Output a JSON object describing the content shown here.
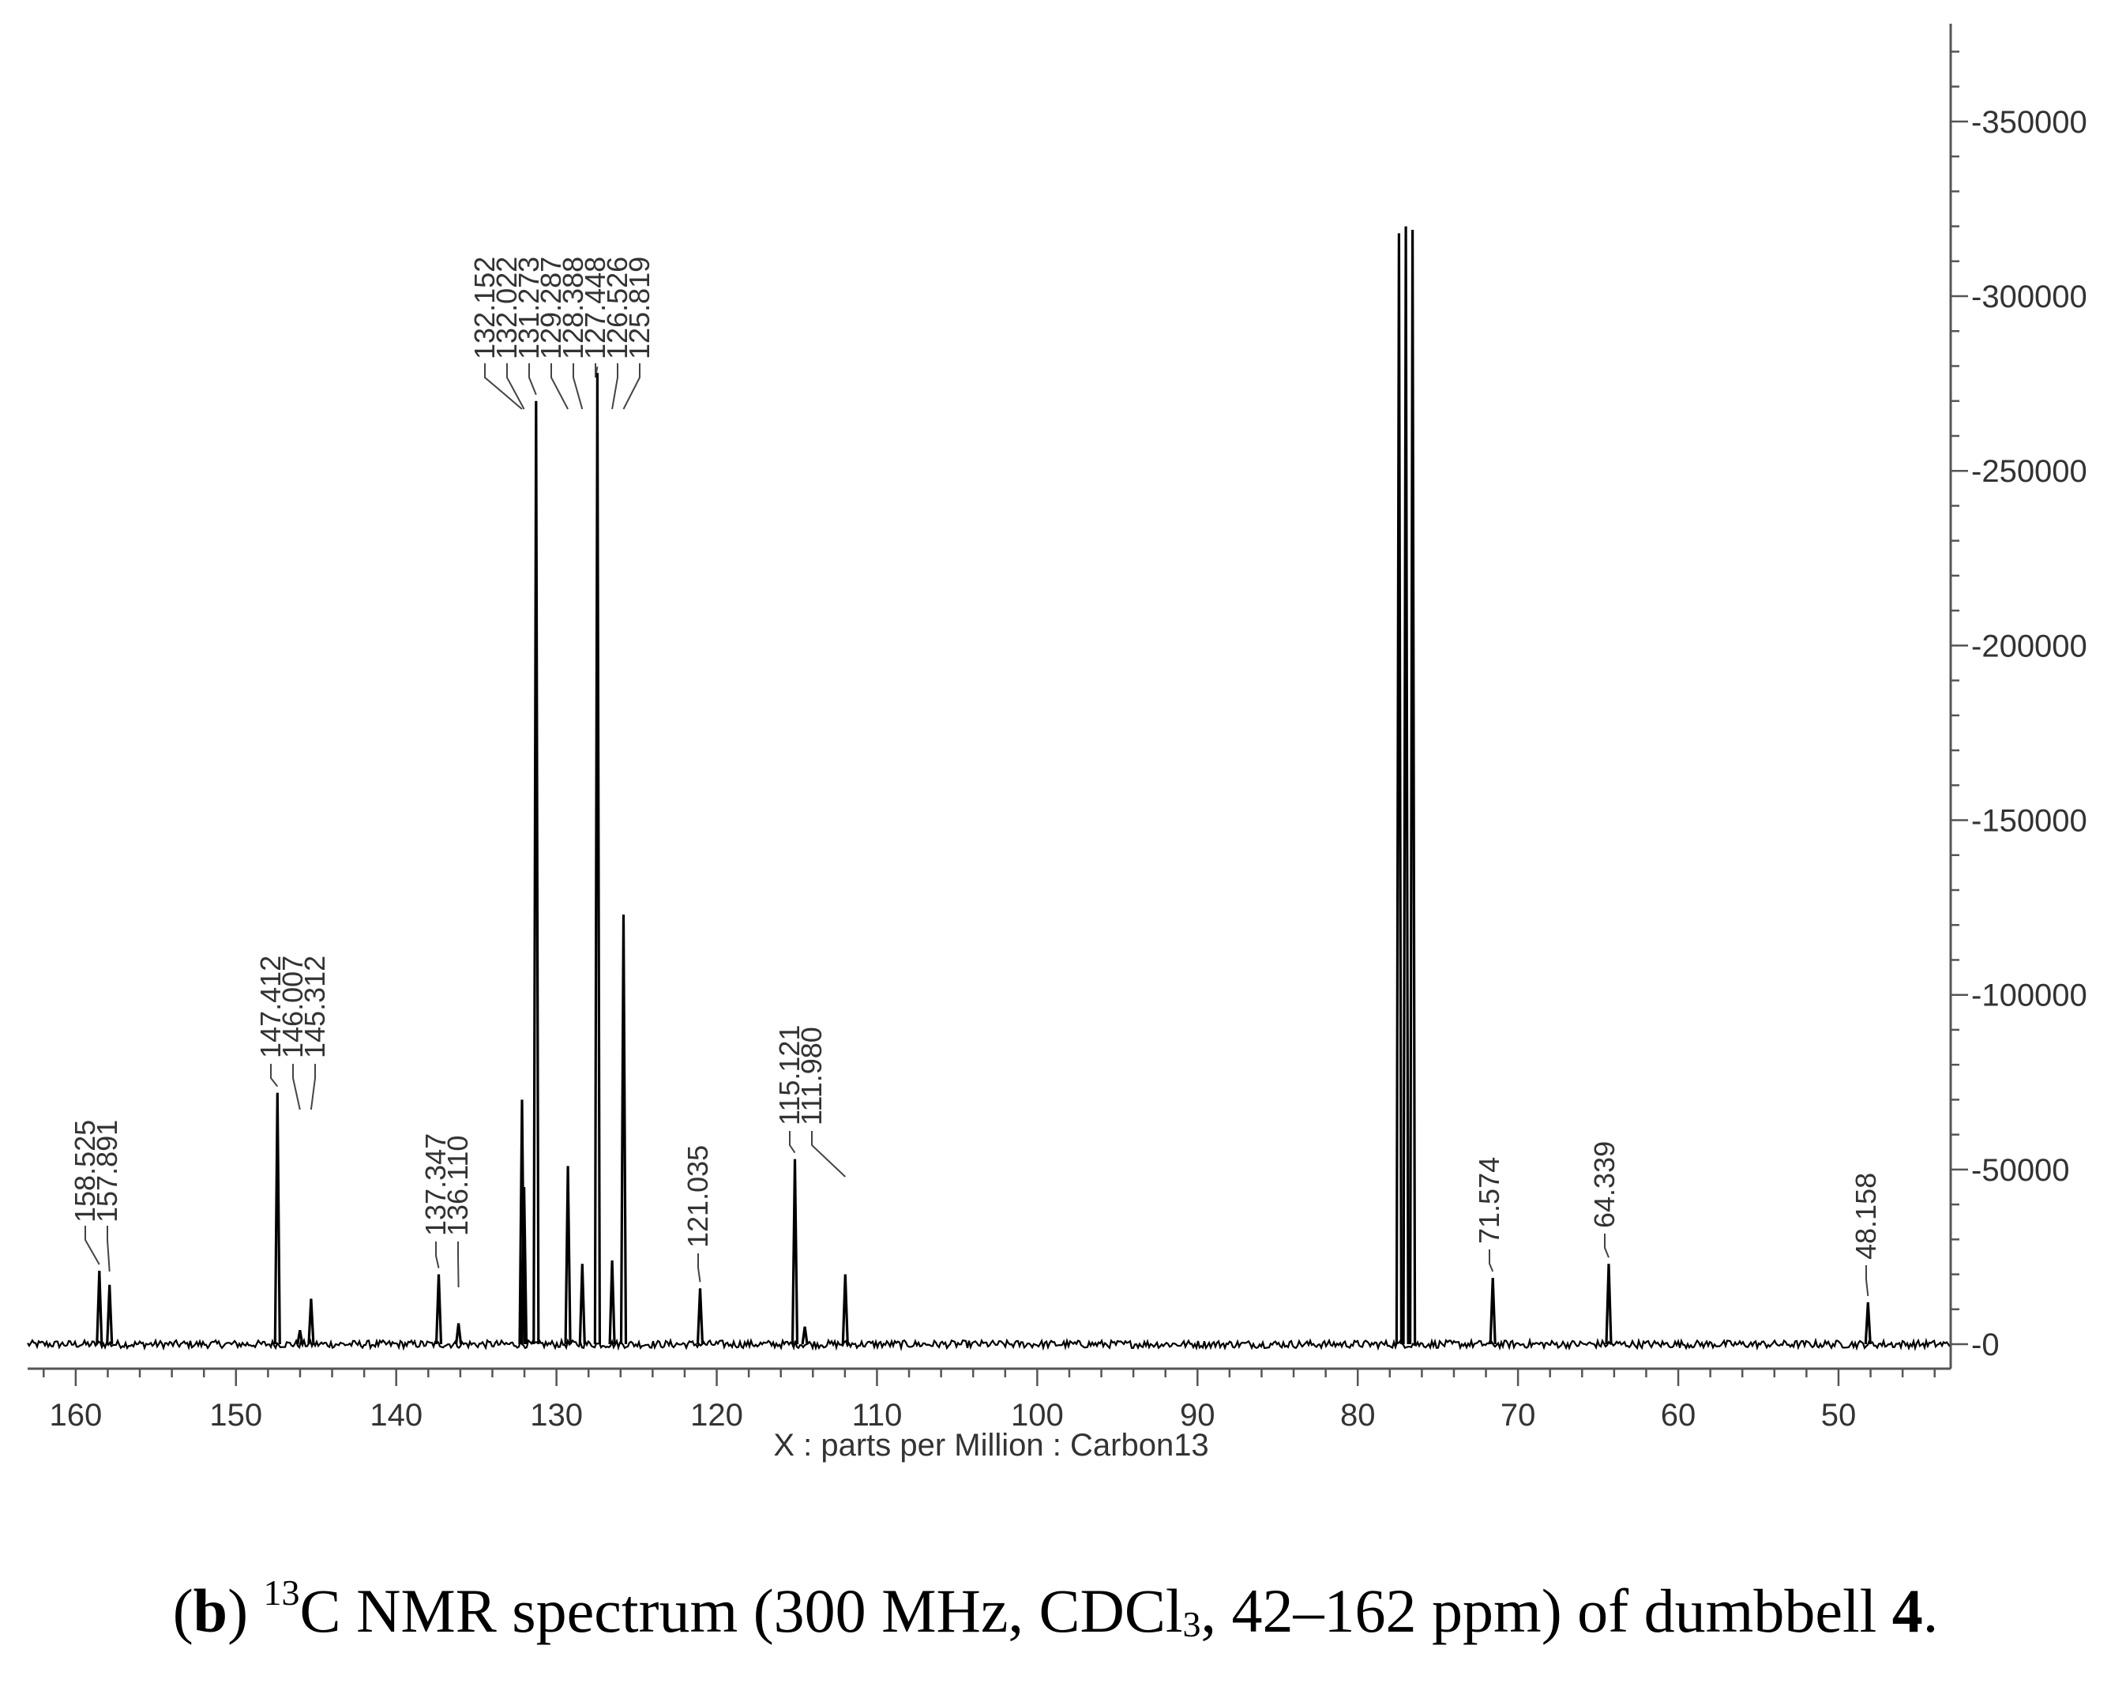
{
  "chart_data": {
    "type": "line",
    "xlabel": "X : parts per Million : Carbon13",
    "x_ticks": [
      160,
      150,
      140,
      130,
      120,
      110,
      100,
      90,
      80,
      70,
      60,
      50
    ],
    "y_ticks": [
      0,
      50000,
      100000,
      150000,
      200000,
      250000,
      300000,
      350000
    ],
    "xlim": [
      163,
      43
    ],
    "ylim": [
      -7000,
      378000
    ],
    "x_direction": "reversed",
    "y_axis_position": "right",
    "grid": false,
    "line_color": "#000000",
    "peaks": [
      {
        "ppm": 158.525,
        "intensity": 21000
      },
      {
        "ppm": 157.891,
        "intensity": 17000
      },
      {
        "ppm": 147.412,
        "intensity": 72000
      },
      {
        "ppm": 146.007,
        "intensity": 4000
      },
      {
        "ppm": 145.312,
        "intensity": 13000
      },
      {
        "ppm": 137.347,
        "intensity": 20000
      },
      {
        "ppm": 136.11,
        "intensity": 6000
      },
      {
        "ppm": 132.152,
        "intensity": 70000
      },
      {
        "ppm": 132.022,
        "intensity": 45000
      },
      {
        "ppm": 131.273,
        "intensity": 270000
      },
      {
        "ppm": 129.287,
        "intensity": 51000
      },
      {
        "ppm": 128.388,
        "intensity": 23000
      },
      {
        "ppm": 127.448,
        "intensity": 278000
      },
      {
        "ppm": 126.526,
        "intensity": 24000
      },
      {
        "ppm": 125.819,
        "intensity": 123000
      },
      {
        "ppm": 121.035,
        "intensity": 16000
      },
      {
        "ppm": 115.121,
        "intensity": 53000
      },
      {
        "ppm": 114.5,
        "intensity": 5000
      },
      {
        "ppm": 111.98,
        "intensity": 20000
      },
      {
        "ppm": 77.43,
        "intensity": 318000
      },
      {
        "ppm": 77.0,
        "intensity": 320000
      },
      {
        "ppm": 76.58,
        "intensity": 319000
      },
      {
        "ppm": 71.574,
        "intensity": 19000
      },
      {
        "ppm": 64.339,
        "intensity": 23000
      },
      {
        "ppm": 48.158,
        "intensity": 12000
      }
    ],
    "peak_labels": [
      "158.525",
      "157.891",
      "147.412",
      "146.007",
      "145.312",
      "137.347",
      "136.110",
      "132.152",
      "132.022",
      "131.273",
      "129.287",
      "128.388",
      "127.448",
      "126.526",
      "125.819",
      "121.035",
      "115.121",
      "111.980",
      "71.574",
      "64.339",
      "48.158"
    ]
  },
  "caption": {
    "open_paren": "(",
    "letter": "b",
    "close_paren": ") ",
    "isotope": "13",
    "nucleus_text": "C NMR spectrum (300 MHz, CDCl",
    "subscript": "3",
    "range_text": ", 42–162 ppm) of dumbbell ",
    "compound": "4",
    "end": "."
  }
}
